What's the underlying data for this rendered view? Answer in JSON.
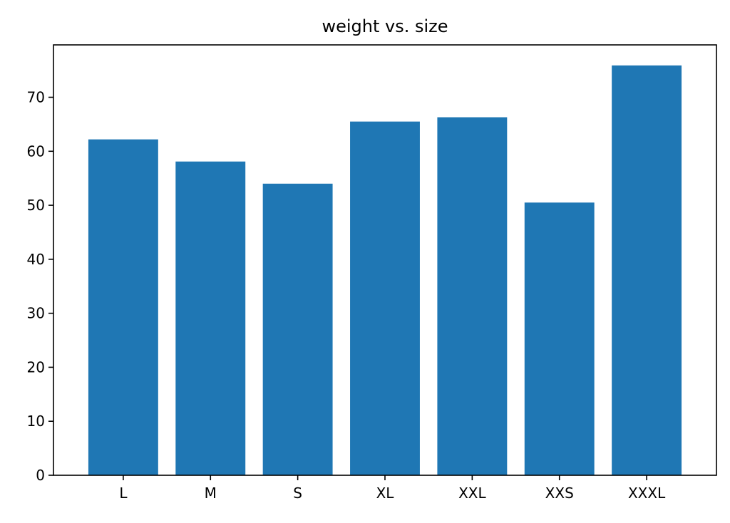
{
  "chart_data": {
    "type": "bar",
    "title": "weight vs. size",
    "xlabel": "",
    "ylabel": "",
    "categories": [
      "L",
      "M",
      "S",
      "XL",
      "XXL",
      "XXS",
      "XXXL"
    ],
    "values": [
      62.2,
      58.1,
      54.0,
      65.5,
      66.3,
      50.5,
      75.9
    ],
    "ylim": [
      0,
      79.7
    ],
    "yticks": [
      0,
      10,
      20,
      30,
      40,
      50,
      60,
      70
    ],
    "grid": false,
    "bar_color": "#1f77b4"
  }
}
